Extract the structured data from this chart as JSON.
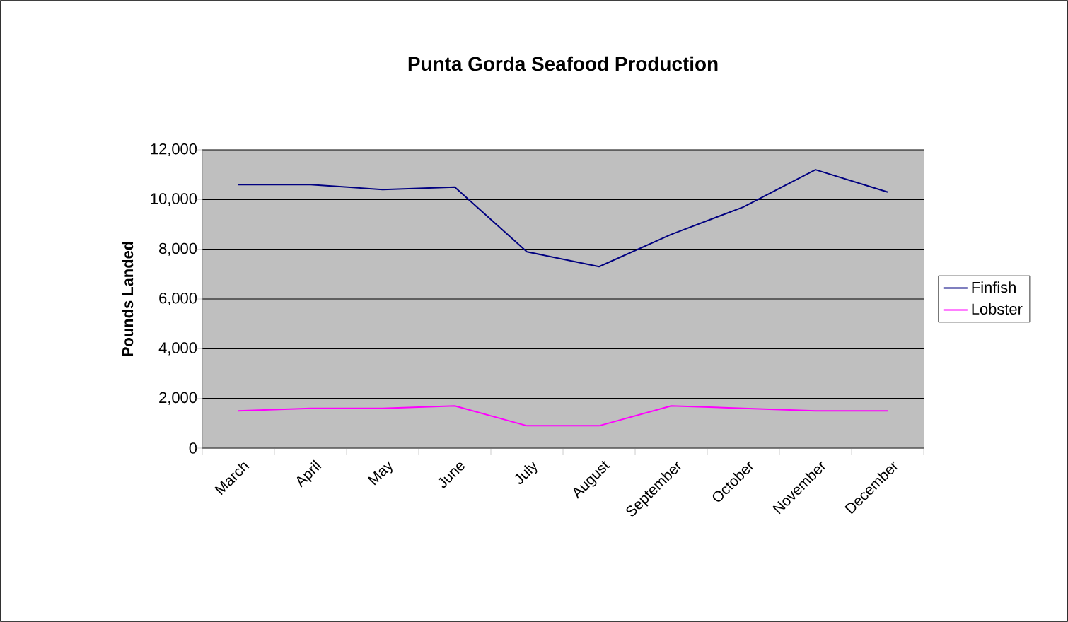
{
  "chart_data": {
    "type": "line",
    "title": "Punta Gorda Seafood Production",
    "ylabel": "Pounds Landed",
    "categories": [
      "March",
      "April",
      "May",
      "June",
      "July",
      "August",
      "September",
      "October",
      "November",
      "December"
    ],
    "series": [
      {
        "name": "Finfish",
        "color": "#000080",
        "values": [
          10600,
          10600,
          10400,
          10500,
          7900,
          7300,
          8600,
          9700,
          11200,
          10300
        ]
      },
      {
        "name": "Lobster",
        "color": "#ff00ff",
        "values": [
          1500,
          1600,
          1600,
          1700,
          900,
          900,
          1700,
          1600,
          1500,
          1500
        ]
      }
    ],
    "ylim": [
      0,
      12000
    ],
    "yticks": [
      {
        "value": 0,
        "label": "0"
      },
      {
        "value": 2000,
        "label": "2,000"
      },
      {
        "value": 4000,
        "label": "4,000"
      },
      {
        "value": 6000,
        "label": "6,000"
      },
      {
        "value": 8000,
        "label": "8,000"
      },
      {
        "value": 10000,
        "label": "10,000"
      },
      {
        "value": 12000,
        "label": "12,000"
      }
    ],
    "grid": "y",
    "legend": "right",
    "marker": "none",
    "line_style": "solid"
  }
}
